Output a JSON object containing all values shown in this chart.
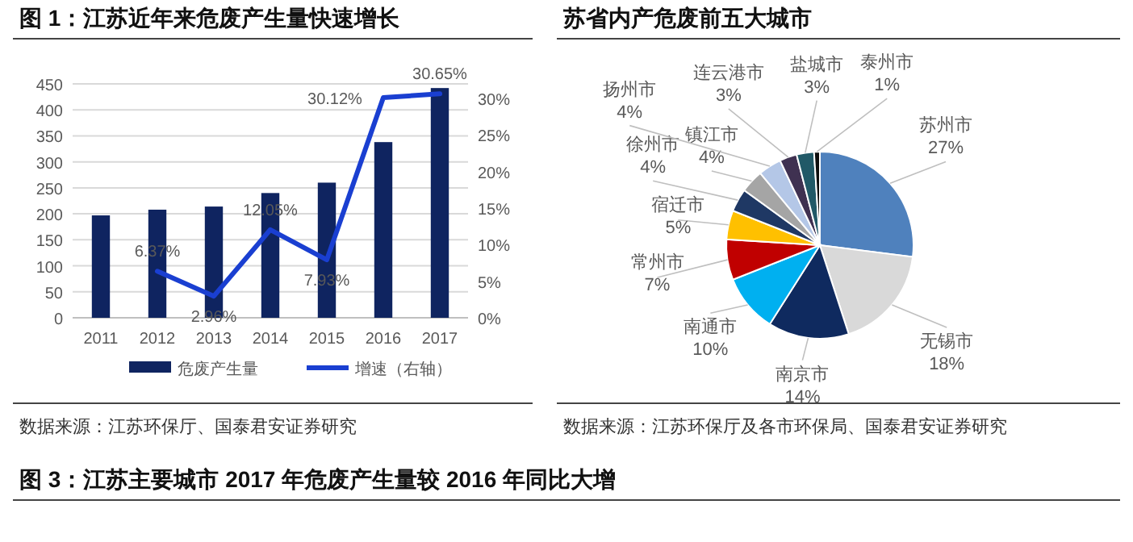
{
  "chart_data": [
    {
      "type": "bar",
      "title": "图 1：江苏近年来危废产生量快速增长",
      "categories": [
        "2011",
        "2012",
        "2013",
        "2014",
        "2015",
        "2016",
        "2017"
      ],
      "series": [
        {
          "type": "bar",
          "name": "危废产生量",
          "color": "#0f2460",
          "values": [
            197,
            208,
            214,
            240,
            260,
            338,
            442
          ]
        },
        {
          "type": "line",
          "name": "增速（右轴）",
          "color": "#1a3fd1",
          "axis": "y2",
          "values": [
            null,
            6.37,
            2.96,
            12.05,
            7.93,
            30.12,
            30.65
          ],
          "value_labels": [
            null,
            "6.37%",
            "2.96%",
            "12.05%",
            "7.93%",
            "30.12%",
            "30.65%"
          ]
        }
      ],
      "ylim": [
        0,
        450
      ],
      "yticks": [
        0,
        50,
        100,
        150,
        200,
        250,
        300,
        350,
        400,
        450
      ],
      "y2lim": [
        0,
        32
      ],
      "y2ticks": [
        {
          "value": 0,
          "label": "0%"
        },
        {
          "value": 5,
          "label": "5%"
        },
        {
          "value": 10,
          "label": "10%"
        },
        {
          "value": 15,
          "label": "15%"
        },
        {
          "value": 20,
          "label": "20%"
        },
        {
          "value": 25,
          "label": "25%"
        },
        {
          "value": 30,
          "label": "30%"
        }
      ],
      "grid": "y",
      "legend": "bottom",
      "annotations": [
        "数据来源：江苏环保厅、国泰君安证券研究"
      ]
    },
    {
      "type": "pie",
      "title": "苏省内产危废前五大城市",
      "categories": [
        "苏州市",
        "无锡市",
        "南京市",
        "南通市",
        "常州市",
        "宿迁市",
        "徐州市",
        "镇江市",
        "扬州市",
        "连云港市",
        "盐城市",
        "泰州市"
      ],
      "values": [
        27,
        18,
        14,
        10,
        7,
        5,
        4,
        4,
        4,
        3,
        3,
        1
      ],
      "value_labels": [
        "27%",
        "18%",
        "14%",
        "10%",
        "7%",
        "5%",
        "4%",
        "4%",
        "4%",
        "3%",
        "3%",
        "1%"
      ],
      "colors": [
        "#4f81bd",
        "#d9d9d9",
        "#0f2a5f",
        "#00b0f0",
        "#c00000",
        "#ffc000",
        "#1f3864",
        "#a5a5a5",
        "#b4c7e7",
        "#3f3151",
        "#215967",
        "#0d0d0d"
      ],
      "annotations": [
        "数据来源：江苏环保厅及各市环保局、国泰君安证券研究"
      ]
    },
    {
      "type": "other",
      "title": "图 3：江苏主要城市 2017 年危废产生量较 2016 年同比大增"
    }
  ]
}
